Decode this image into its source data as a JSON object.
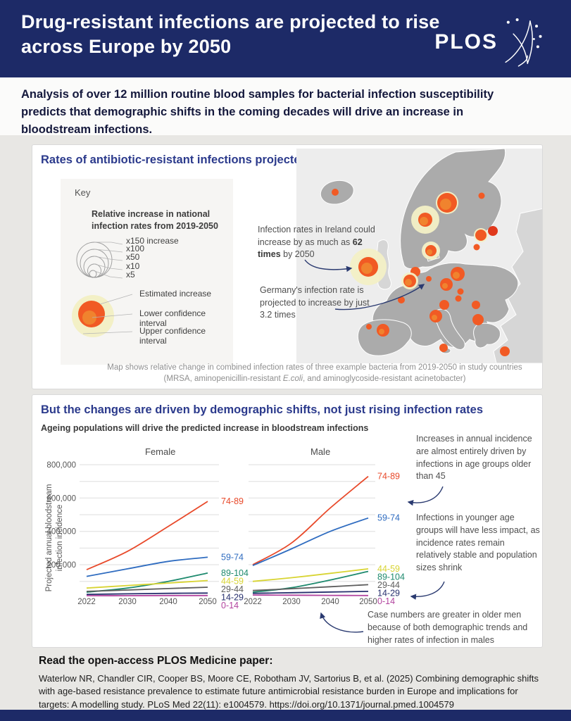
{
  "header": {
    "title": "Drug-resistant infections are projected to rise across Europe by 2050",
    "logo": "PLOS"
  },
  "intro": "Analysis of over 12 million routine blood samples for bacterial infection susceptibility predicts that demographic shifts in the coming decades will drive an increase in bloodstream infections.",
  "map_panel": {
    "title": "Rates of antibiotic-resistant infections projected to rise across Europe",
    "key": {
      "heading": "Key",
      "legend_title": "Relative increase in national infection rates from 2019-2050",
      "size_labels": [
        "x150 increase",
        "x100",
        "x50",
        "x10",
        "x5"
      ],
      "bubble_labels": [
        "Estimated increase",
        "Lower confidence interval",
        "Upper confidence interval"
      ]
    },
    "annotation_ireland": {
      "pre": "Infection rates in Ireland could increase by as much as ",
      "bold": "62 times",
      "post": " by 2050"
    },
    "annotation_germany": "Germany's infection rate is projected to increase by just 3.2 times",
    "caption_line1": "Map shows relative change in combined infection rates of three example bacteria from 2019-2050 in study countries",
    "caption2_pre": "(MRSA, aminopenicillin-resistant ",
    "caption2_italic": "E.coli",
    "caption2_post": ", and aminoglycoside-resistant acinetobacter)",
    "bubbles": [
      {
        "region": "iceland",
        "x": 55,
        "y": 62,
        "r": 5
      },
      {
        "region": "norway",
        "x": 183,
        "y": 101,
        "r": 10,
        "halo": 20,
        "inner": 6
      },
      {
        "region": "sweden",
        "x": 214,
        "y": 77,
        "r": 14,
        "halo": 16,
        "inner": 8
      },
      {
        "region": "finland",
        "x": 263,
        "y": 67,
        "r": 4.5
      },
      {
        "region": "estonia",
        "x": 262,
        "y": 123,
        "r": 8,
        "halo": 10
      },
      {
        "region": "baltic-east",
        "x": 279,
        "y": 117,
        "r": 7,
        "dark": true
      },
      {
        "region": "latvia",
        "x": 256,
        "y": 140,
        "r": 4.5
      },
      {
        "region": "denmark",
        "x": 191,
        "y": 145,
        "r": 8,
        "halo": 13,
        "inner": 4
      },
      {
        "region": "ireland",
        "x": 102,
        "y": 168,
        "r": 14,
        "halo": 26,
        "inner": 8
      },
      {
        "region": "netherlands",
        "x": 169,
        "y": 175,
        "r": 7
      },
      {
        "region": "belgium",
        "x": 161,
        "y": 188,
        "r": 9,
        "halo": 12,
        "inner": 5
      },
      {
        "region": "germany",
        "x": 188,
        "y": 185,
        "r": 4
      },
      {
        "region": "poland",
        "x": 229,
        "y": 178,
        "r": 10,
        "inner": 5
      },
      {
        "region": "czechia",
        "x": 213,
        "y": 193,
        "r": 9,
        "inner": 4
      },
      {
        "region": "austria",
        "x": 233,
        "y": 203,
        "r": 4.5
      },
      {
        "region": "hungary",
        "x": 230,
        "y": 213,
        "r": 4.5
      },
      {
        "region": "france",
        "x": 149,
        "y": 215,
        "r": 5
      },
      {
        "region": "switzerland",
        "x": 210,
        "y": 222,
        "r": 7
      },
      {
        "region": "italy",
        "x": 198,
        "y": 238,
        "r": 9,
        "inner": 4
      },
      {
        "region": "romania",
        "x": 255,
        "y": 222,
        "r": 6
      },
      {
        "region": "serbia",
        "x": 258,
        "y": 243,
        "r": 8
      },
      {
        "region": "spain",
        "x": 123,
        "y": 258,
        "r": 9,
        "inner": 4
      },
      {
        "region": "portugal",
        "x": 103,
        "y": 253,
        "r": 4
      },
      {
        "region": "sicily",
        "x": 209,
        "y": 283,
        "r": 6
      },
      {
        "region": "greece",
        "x": 296,
        "y": 288,
        "r": 7
      }
    ]
  },
  "chart_panel": {
    "title": "But the changes are driven by demographic shifts, not just rising infection rates",
    "subtitle": "Ageing populations will drive the predicted increase in bloodstream infections",
    "annotation_older": "Increases in annual incidence are almost entirely driven by infections in age groups older than 45",
    "annotation_younger": "Infections in younger age groups will have less impact, as incidence rates remain relatively stable and population sizes shrink",
    "annotation_male": "Case numbers are greater in older men because of both demographic trends and higher rates of infection in males"
  },
  "chart_data": {
    "type": "line",
    "x": [
      2022,
      2030,
      2040,
      2050
    ],
    "ylim": [
      0,
      850000
    ],
    "yticks": [
      200000,
      400000,
      600000,
      800000
    ],
    "gridline_step": 100000,
    "grid": true,
    "legend_position": "line-end-labels",
    "ylabel": "Projected annual bloodstream infection incidence",
    "panels": [
      {
        "title": "Female",
        "series": [
          {
            "name": "74-89",
            "color": "#e8492a",
            "values": [
              170000,
              280000,
              430000,
              580000
            ]
          },
          {
            "name": "59-74",
            "color": "#2f6cc0",
            "values": [
              130000,
              175000,
              220000,
              245000
            ]
          },
          {
            "name": "89-104",
            "color": "#1e8a6e",
            "values": [
              35000,
              60000,
              100000,
              150000
            ]
          },
          {
            "name": "44-59",
            "color": "#d8d433",
            "values": [
              60000,
              75000,
              90000,
              105000
            ]
          },
          {
            "name": "29-44",
            "color": "#5d5d5d",
            "values": [
              40000,
              48000,
              57000,
              65000
            ]
          },
          {
            "name": "14-29",
            "color": "#27306e",
            "values": [
              22000,
              25000,
              28000,
              30000
            ]
          },
          {
            "name": "0-14",
            "color": "#b2449f",
            "values": [
              14000,
              14000,
              15000,
              15000
            ]
          }
        ]
      },
      {
        "title": "Male",
        "series": [
          {
            "name": "74-89",
            "color": "#e8492a",
            "values": [
              200000,
              330000,
              540000,
              730000
            ]
          },
          {
            "name": "59-74",
            "color": "#2f6cc0",
            "values": [
              195000,
              295000,
              400000,
              480000
            ]
          },
          {
            "name": "44-59",
            "color": "#d8d433",
            "values": [
              100000,
              122000,
              148000,
              175000
            ]
          },
          {
            "name": "89-104",
            "color": "#1e8a6e",
            "values": [
              35000,
              62000,
              108000,
              160000
            ]
          },
          {
            "name": "29-44",
            "color": "#5d5d5d",
            "values": [
              45000,
              56000,
              68000,
              80000
            ]
          },
          {
            "name": "14-29",
            "color": "#27306e",
            "values": [
              28000,
              32000,
              36000,
              40000
            ]
          },
          {
            "name": "0-14",
            "color": "#b2449f",
            "values": [
              18000,
              17000,
              16000,
              15000
            ]
          }
        ]
      }
    ]
  },
  "footer": {
    "heading": "Read the open-access PLOS Medicine paper:",
    "citation": "Waterlow NR, Chandler CIR, Cooper BS, Moore CE, Robotham JV, Sartorius B, et al. (2025) Combining demographic shifts with age-based resistance prevalence to estimate future antimicrobial resistance burden in Europe and implications for targets: A modelling study. PLoS Med 22(11): e1004579. https://doi.org/10.1371/journal.pmed.1004579"
  },
  "colors": {
    "navy": "#1d2a67",
    "panel_title": "#2b3a8c",
    "intro_text": "#14183c",
    "annotation_gray": "#4f4f4f",
    "caption_gray": "#8f8f8f",
    "page_bg": "#e8e7e4",
    "sea": "#ededed",
    "land_study": "#ababab",
    "land_other": "#d6d6d6",
    "bubble": "#f15a24",
    "bubble_inner": "#f0832e",
    "bubble_halo": "#f3f0c6",
    "bubble_dark": "#e0391c",
    "arrow": "#2a3a70"
  }
}
